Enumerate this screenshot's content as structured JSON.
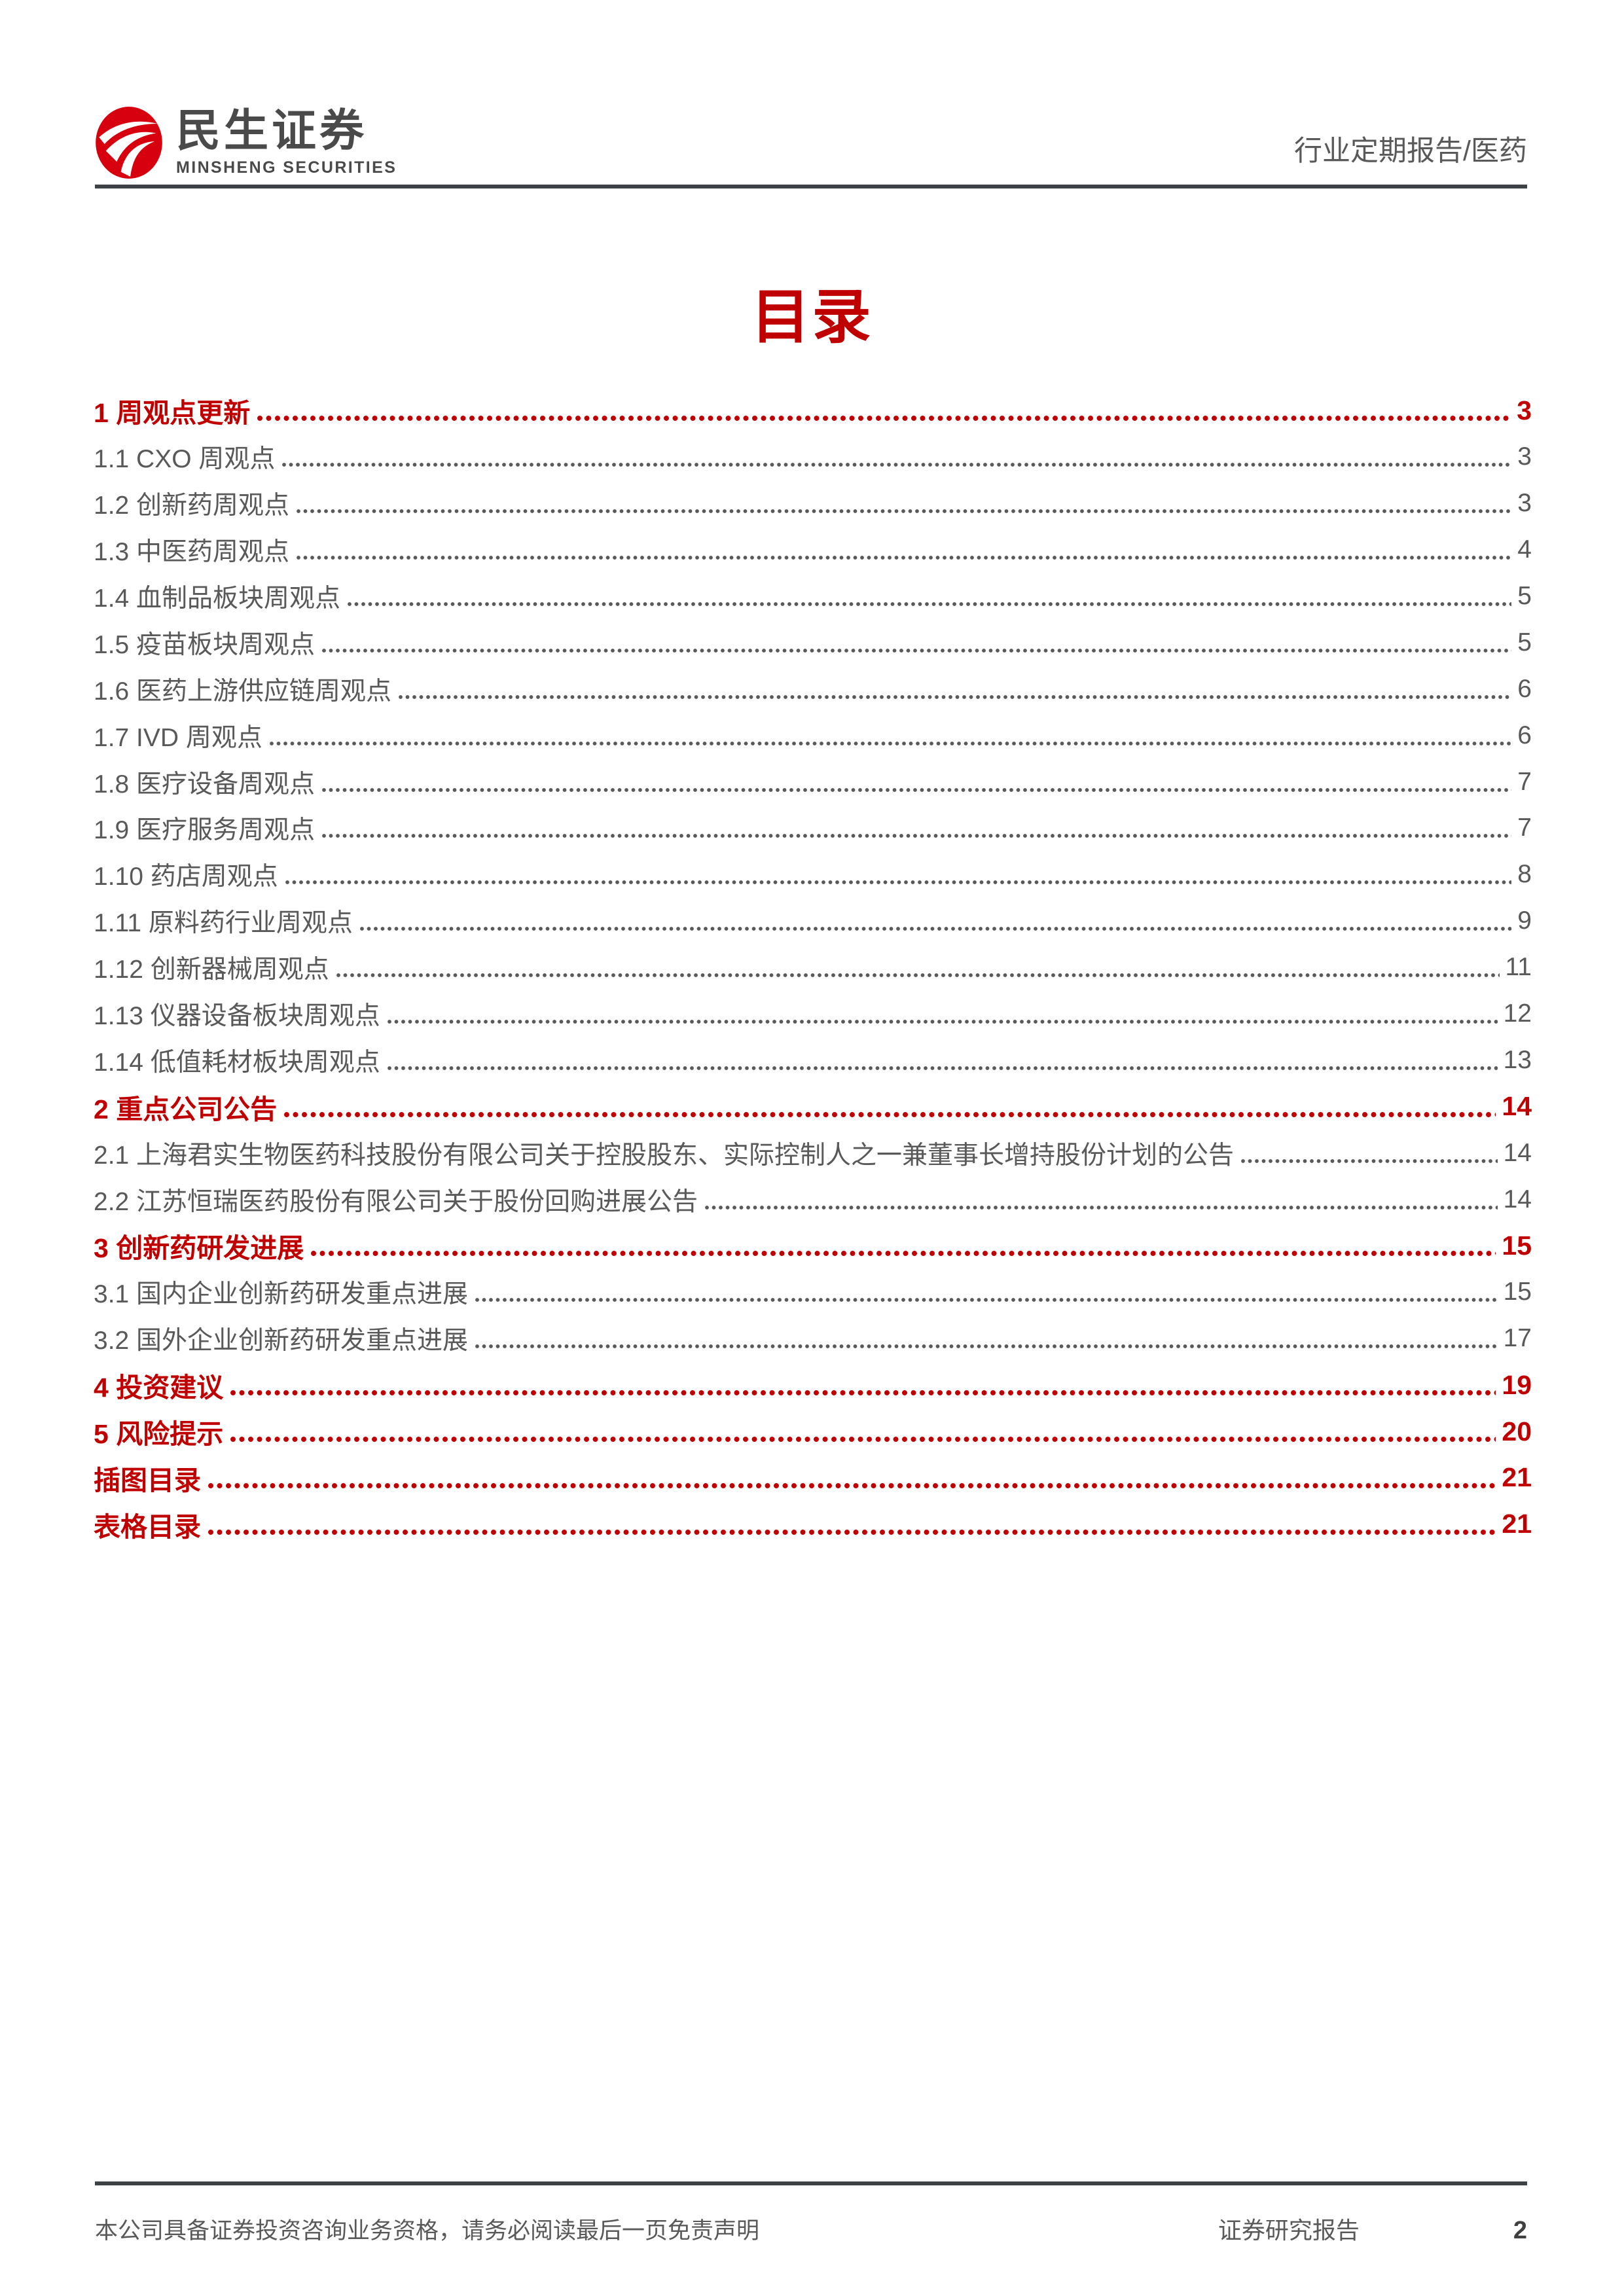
{
  "header": {
    "logo": {
      "icon": "minsheng-logo-icon",
      "cn": "民生证券",
      "en": "MINSHENG SECURITIES"
    },
    "report_type": "行业定期报告/医药"
  },
  "title": "目录",
  "toc": {
    "entries": [
      {
        "label": "1 周观点更新",
        "page": "3",
        "level": 1
      },
      {
        "label": "1.1 CXO 周观点",
        "page": "3",
        "level": 2
      },
      {
        "label": "1.2 创新药周观点",
        "page": "3",
        "level": 2
      },
      {
        "label": "1.3 中医药周观点",
        "page": "4",
        "level": 2
      },
      {
        "label": "1.4 血制品板块周观点",
        "page": "5",
        "level": 2
      },
      {
        "label": "1.5 疫苗板块周观点",
        "page": "5",
        "level": 2
      },
      {
        "label": "1.6 医药上游供应链周观点",
        "page": "6",
        "level": 2
      },
      {
        "label": "1.7 IVD 周观点",
        "page": "6",
        "level": 2
      },
      {
        "label": "1.8 医疗设备周观点",
        "page": "7",
        "level": 2
      },
      {
        "label": "1.9 医疗服务周观点",
        "page": "7",
        "level": 2
      },
      {
        "label": "1.10 药店周观点",
        "page": "8",
        "level": 2
      },
      {
        "label": "1.11 原料药行业周观点",
        "page": "9",
        "level": 2
      },
      {
        "label": "1.12 创新器械周观点",
        "page": "11",
        "level": 2
      },
      {
        "label": "1.13 仪器设备板块周观点",
        "page": "12",
        "level": 2
      },
      {
        "label": "1.14 低值耗材板块周观点",
        "page": "13",
        "level": 2
      },
      {
        "label": "2 重点公司公告",
        "page": "14",
        "level": 1
      },
      {
        "label": "2.1 上海君实生物医药科技股份有限公司关于控股股东、实际控制人之一兼董事长增持股份计划的公告",
        "page": "14",
        "level": 2
      },
      {
        "label": "2.2 江苏恒瑞医药股份有限公司关于股份回购进展公告",
        "page": "14",
        "level": 2
      },
      {
        "label": "3 创新药研发进展",
        "page": "15",
        "level": 1
      },
      {
        "label": "3.1 国内企业创新药研发重点进展",
        "page": "15",
        "level": 2
      },
      {
        "label": "3.2 国外企业创新药研发重点进展",
        "page": "17",
        "level": 2
      },
      {
        "label": "4 投资建议",
        "page": "19",
        "level": 1
      },
      {
        "label": "5 风险提示",
        "page": "20",
        "level": 1
      },
      {
        "label": "插图目录",
        "page": "21",
        "level": 1
      },
      {
        "label": "表格目录",
        "page": "21",
        "level": 1
      }
    ]
  },
  "footer": {
    "left": "本公司具备证券投资咨询业务资格，请务必阅读最后一页免责声明",
    "right": "证券研究报告",
    "page_number": "2"
  },
  "colors": {
    "accent_red": "#c00000",
    "logo_red": "#d7000f",
    "text_gray": "#595959",
    "rule_dark": "#3e4146"
  }
}
